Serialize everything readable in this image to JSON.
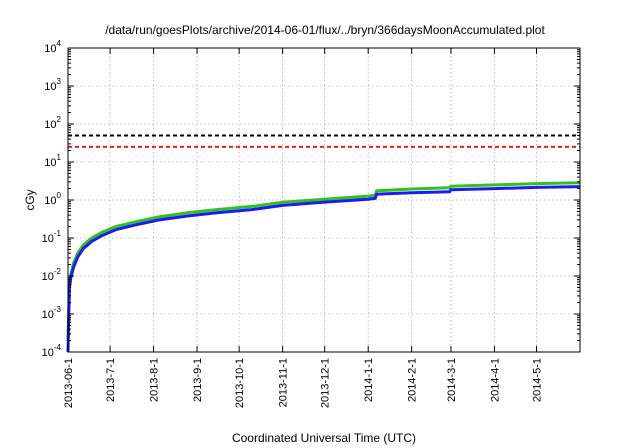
{
  "chart_data": {
    "type": "line",
    "title": "/data/run/goesPlots/archive/2014-06-01/flux/../bryn/366daysMoonAccumulated.plot",
    "xlabel": "Coordinated Universal Time (UTC)",
    "ylabel": "cGy",
    "xlim": [
      "2013-06-01",
      "2014-06-01"
    ],
    "ylim": [
      0.0001,
      10000
    ],
    "yscale": "log",
    "grid": true,
    "xticks": [
      "2013-06-01",
      "2013-07-01",
      "2013-08-01",
      "2013-09-01",
      "2013-10-01",
      "2013-11-01",
      "2013-12-01",
      "2014-01-01",
      "2014-02-01",
      "2014-03-01",
      "2014-04-01",
      "2014-05-01"
    ],
    "xtick_labels": [
      "2013-06-1",
      "2013-7-1",
      "2013-8-1",
      "2013-9-1",
      "2013-10-1",
      "2013-11-1",
      "2013-12-1",
      "2014-1-1",
      "2014-2-1",
      "2014-3-1",
      "2014-4-1",
      "2014-5-1"
    ],
    "yticks": [
      {
        "value": 0.0001,
        "base": "10",
        "exp": "-4"
      },
      {
        "value": 0.001,
        "base": "10",
        "exp": "-3"
      },
      {
        "value": 0.01,
        "base": "10",
        "exp": "-2"
      },
      {
        "value": 0.1,
        "base": "10",
        "exp": "-1"
      },
      {
        "value": 1,
        "base": "10",
        "exp": "0"
      },
      {
        "value": 10,
        "base": "10",
        "exp": "1"
      },
      {
        "value": 100,
        "base": "10",
        "exp": "2"
      },
      {
        "value": 1000,
        "base": "10",
        "exp": "3"
      },
      {
        "value": 10000,
        "base": "10",
        "exp": "4"
      }
    ],
    "reference_lines": [
      {
        "y": 50,
        "color": "#000000"
      },
      {
        "y": 25,
        "color": "#e8201a"
      }
    ],
    "series": [
      {
        "color": "#2ec21e",
        "x": [
          "2013-06-01",
          "2013-06-02",
          "2013-06-03",
          "2013-06-05",
          "2013-06-08",
          "2013-06-12",
          "2013-06-18",
          "2013-06-25",
          "2013-07-05",
          "2013-07-20",
          "2013-08-05",
          "2013-08-25",
          "2013-09-15",
          "2013-10-10",
          "2013-11-01",
          "2013-12-01",
          "2014-01-01",
          "2014-01-06",
          "2014-01-07",
          "2014-02-01",
          "2014-02-28",
          "2014-03-01",
          "2014-04-01",
          "2014-05-01",
          "2014-06-01"
        ],
        "y": [
          0.0002,
          0.006,
          0.011,
          0.022,
          0.04,
          0.066,
          0.1,
          0.14,
          0.2,
          0.27,
          0.36,
          0.46,
          0.56,
          0.68,
          0.87,
          1.05,
          1.27,
          1.32,
          1.75,
          1.95,
          2.1,
          2.3,
          2.5,
          2.7,
          2.85
        ]
      },
      {
        "color": "#1c1cf0",
        "x": [
          "2013-06-01",
          "2013-06-02",
          "2013-06-03",
          "2013-06-05",
          "2013-06-08",
          "2013-06-12",
          "2013-06-18",
          "2013-06-25",
          "2013-07-05",
          "2013-07-20",
          "2013-08-05",
          "2013-08-25",
          "2013-09-15",
          "2013-10-10",
          "2013-11-01",
          "2013-12-01",
          "2014-01-01",
          "2014-01-06",
          "2014-01-07",
          "2014-02-01",
          "2014-02-28",
          "2014-03-01",
          "2014-04-01",
          "2014-05-01",
          "2014-06-01"
        ],
        "y": [
          0.0001,
          0.0045,
          0.009,
          0.017,
          0.032,
          0.053,
          0.082,
          0.115,
          0.165,
          0.225,
          0.3,
          0.38,
          0.46,
          0.56,
          0.72,
          0.88,
          1.05,
          1.1,
          1.42,
          1.55,
          1.65,
          1.85,
          2.0,
          2.15,
          2.25
        ]
      }
    ]
  }
}
